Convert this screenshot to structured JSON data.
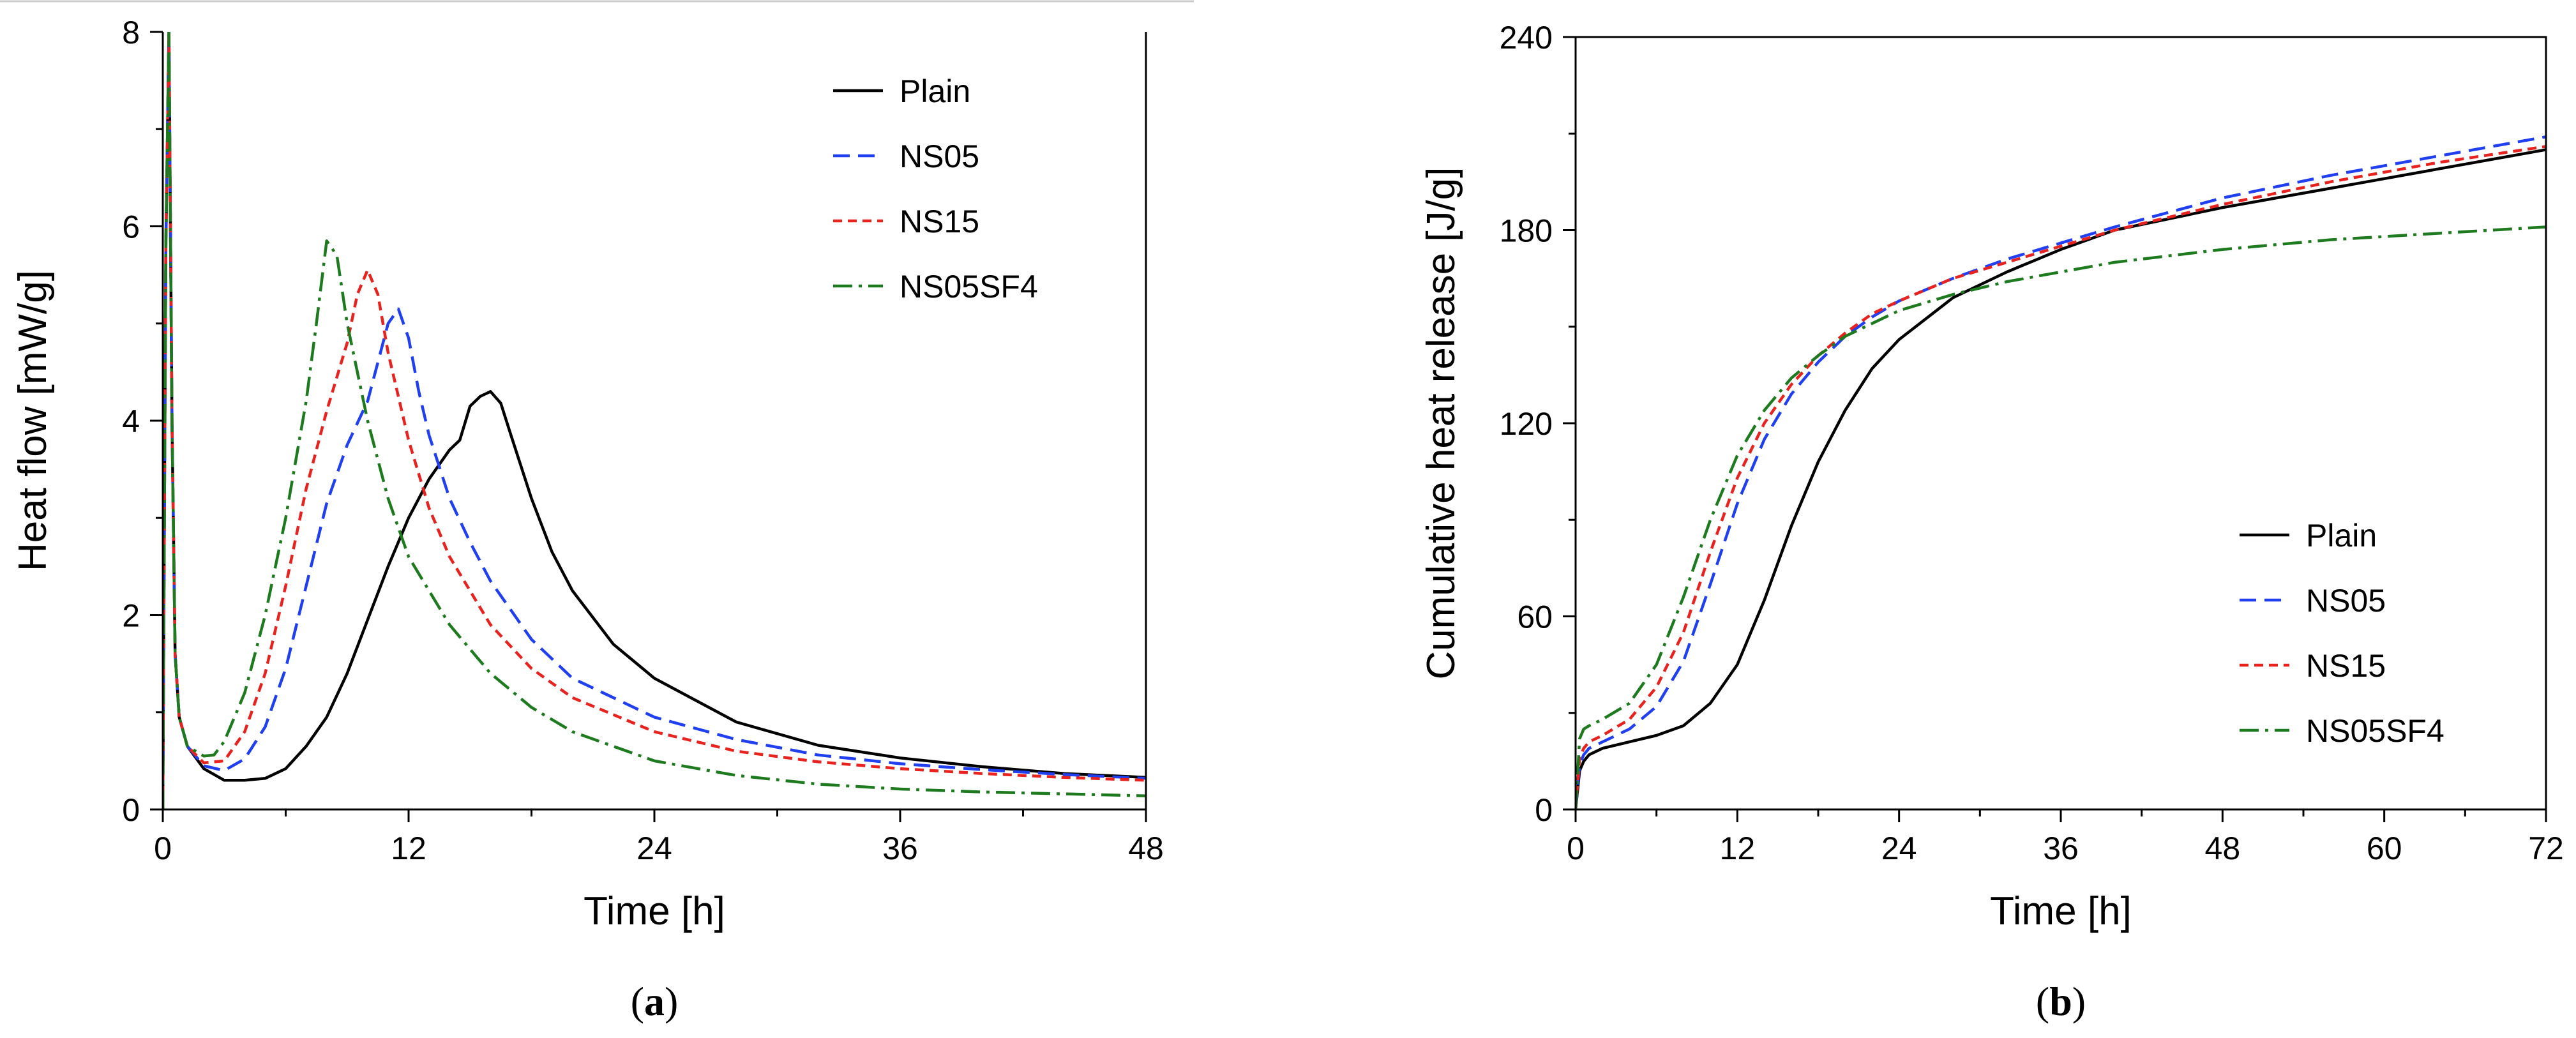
{
  "chart_data": [
    {
      "type": "line",
      "panel_label": "a",
      "title": "",
      "xlabel": "Time [h]",
      "ylabel": "Heat flow [mW/g]",
      "xlim": [
        0,
        48
      ],
      "ylim": [
        0,
        8
      ],
      "xticks": [
        0,
        12,
        24,
        36,
        48
      ],
      "yticks": [
        0,
        2,
        4,
        6,
        8
      ],
      "legend_position": "top-right",
      "series": [
        {
          "name": "Plain",
          "color": "#000000",
          "style": "solid",
          "x": [
            0,
            0.15,
            0.3,
            0.45,
            0.6,
            0.8,
            1.2,
            2,
            3,
            4,
            5,
            6,
            7,
            8,
            9,
            10,
            11,
            12,
            13,
            14,
            14.5,
            15,
            15.5,
            16,
            16.5,
            17,
            18,
            19,
            20,
            22,
            24,
            28,
            32,
            36,
            40,
            44,
            48
          ],
          "y": [
            0,
            5.8,
            8.0,
            4.0,
            1.6,
            0.95,
            0.65,
            0.42,
            0.3,
            0.3,
            0.32,
            0.42,
            0.65,
            0.95,
            1.4,
            1.95,
            2.5,
            3.0,
            3.4,
            3.7,
            3.8,
            4.15,
            4.25,
            4.3,
            4.18,
            3.85,
            3.2,
            2.65,
            2.25,
            1.7,
            1.35,
            0.9,
            0.66,
            0.53,
            0.44,
            0.37,
            0.33
          ]
        },
        {
          "name": "NS05",
          "color": "#1f3ff0",
          "style": "dash",
          "x": [
            0,
            0.15,
            0.3,
            0.45,
            0.6,
            0.8,
            1.2,
            2,
            3,
            4,
            5,
            6,
            7,
            8,
            9,
            10,
            10.5,
            11,
            11.5,
            12,
            12.5,
            13,
            14,
            15,
            16,
            18,
            20,
            24,
            28,
            32,
            36,
            40,
            44,
            48
          ],
          "y": [
            0,
            5.8,
            8.0,
            4.0,
            1.6,
            0.95,
            0.65,
            0.45,
            0.4,
            0.52,
            0.85,
            1.45,
            2.3,
            3.15,
            3.75,
            4.2,
            4.6,
            5.0,
            5.15,
            4.85,
            4.3,
            3.85,
            3.2,
            2.75,
            2.35,
            1.75,
            1.35,
            0.95,
            0.72,
            0.56,
            0.47,
            0.41,
            0.36,
            0.32
          ]
        },
        {
          "name": "NS15",
          "color": "#e8221e",
          "style": "short-dash",
          "x": [
            0,
            0.15,
            0.3,
            0.45,
            0.6,
            0.8,
            1.2,
            2,
            3,
            4,
            5,
            6,
            7,
            8,
            9,
            9.5,
            10,
            10.5,
            11,
            12,
            13,
            14,
            16,
            18,
            20,
            24,
            28,
            32,
            36,
            40,
            44,
            48
          ],
          "y": [
            0,
            5.8,
            8.0,
            4.0,
            1.6,
            0.95,
            0.65,
            0.48,
            0.5,
            0.8,
            1.4,
            2.3,
            3.3,
            4.1,
            4.8,
            5.3,
            5.55,
            5.3,
            4.7,
            3.8,
            3.1,
            2.6,
            1.9,
            1.45,
            1.15,
            0.8,
            0.6,
            0.49,
            0.42,
            0.37,
            0.33,
            0.3
          ]
        },
        {
          "name": "NS05SF4",
          "color": "#1e7a1e",
          "style": "dash-dot",
          "x": [
            0,
            0.15,
            0.3,
            0.45,
            0.6,
            0.8,
            1.2,
            2,
            2.5,
            3,
            4,
            5,
            6,
            7,
            7.5,
            8,
            8.5,
            9,
            10,
            11,
            12,
            14,
            16,
            18,
            20,
            24,
            28,
            32,
            36,
            40,
            44,
            48
          ],
          "y": [
            0,
            5.8,
            8.0,
            4.0,
            1.6,
            0.95,
            0.65,
            0.55,
            0.56,
            0.7,
            1.2,
            2.0,
            3.0,
            4.2,
            5.0,
            5.85,
            5.7,
            5.0,
            4.0,
            3.2,
            2.6,
            1.9,
            1.4,
            1.05,
            0.8,
            0.5,
            0.35,
            0.26,
            0.21,
            0.18,
            0.16,
            0.14
          ]
        }
      ]
    },
    {
      "type": "line",
      "panel_label": "b",
      "title": "",
      "xlabel": "Time [h]",
      "ylabel": "Cumulative heat release [J/g]",
      "xlim": [
        0,
        72
      ],
      "ylim": [
        0,
        240
      ],
      "xticks": [
        0,
        12,
        24,
        36,
        48,
        60,
        72
      ],
      "yticks": [
        0,
        60,
        120,
        180,
        240
      ],
      "legend_position": "bottom-right",
      "series": [
        {
          "name": "Plain",
          "color": "#000000",
          "style": "solid",
          "x": [
            0,
            0.3,
            0.6,
            1,
            2,
            4,
            6,
            8,
            10,
            12,
            14,
            16,
            18,
            20,
            22,
            24,
            28,
            32,
            36,
            40,
            48,
            56,
            64,
            72
          ],
          "y": [
            0,
            12,
            15,
            17,
            19,
            21,
            23,
            26,
            33,
            45,
            65,
            88,
            108,
            124,
            137,
            146,
            159,
            167,
            174,
            180,
            187,
            193,
            199,
            205
          ]
        },
        {
          "name": "NS05",
          "color": "#1f3ff0",
          "style": "dash",
          "x": [
            0,
            0.3,
            0.6,
            1,
            2,
            4,
            6,
            8,
            10,
            12,
            14,
            16,
            18,
            20,
            22,
            24,
            28,
            32,
            36,
            40,
            48,
            56,
            64,
            72
          ],
          "y": [
            0,
            14,
            17,
            19,
            21,
            25,
            32,
            46,
            70,
            95,
            115,
            129,
            139,
            147,
            153,
            158,
            165,
            171,
            176,
            181,
            190,
            197,
            203,
            209
          ]
        },
        {
          "name": "NS15",
          "color": "#e8221e",
          "style": "short-dash",
          "x": [
            0,
            0.3,
            0.6,
            1,
            2,
            4,
            6,
            8,
            10,
            12,
            14,
            16,
            18,
            20,
            22,
            24,
            28,
            32,
            36,
            40,
            48,
            56,
            64,
            72
          ],
          "y": [
            0,
            16,
            19,
            21,
            23,
            28,
            38,
            55,
            80,
            103,
            120,
            132,
            141,
            148,
            154,
            158,
            165,
            170,
            175,
            180,
            188,
            195,
            201,
            206
          ]
        },
        {
          "name": "NS05SF4",
          "color": "#1e7a1e",
          "style": "dash-dot",
          "x": [
            0,
            0.3,
            0.6,
            1,
            2,
            4,
            6,
            8,
            10,
            12,
            14,
            16,
            18,
            20,
            22,
            24,
            28,
            32,
            36,
            40,
            48,
            56,
            64,
            72
          ],
          "y": [
            0,
            22,
            25,
            26,
            28,
            33,
            45,
            66,
            90,
            110,
            124,
            134,
            141,
            147,
            151,
            155,
            160,
            164,
            167,
            170,
            174,
            177,
            179,
            181
          ]
        }
      ]
    }
  ]
}
